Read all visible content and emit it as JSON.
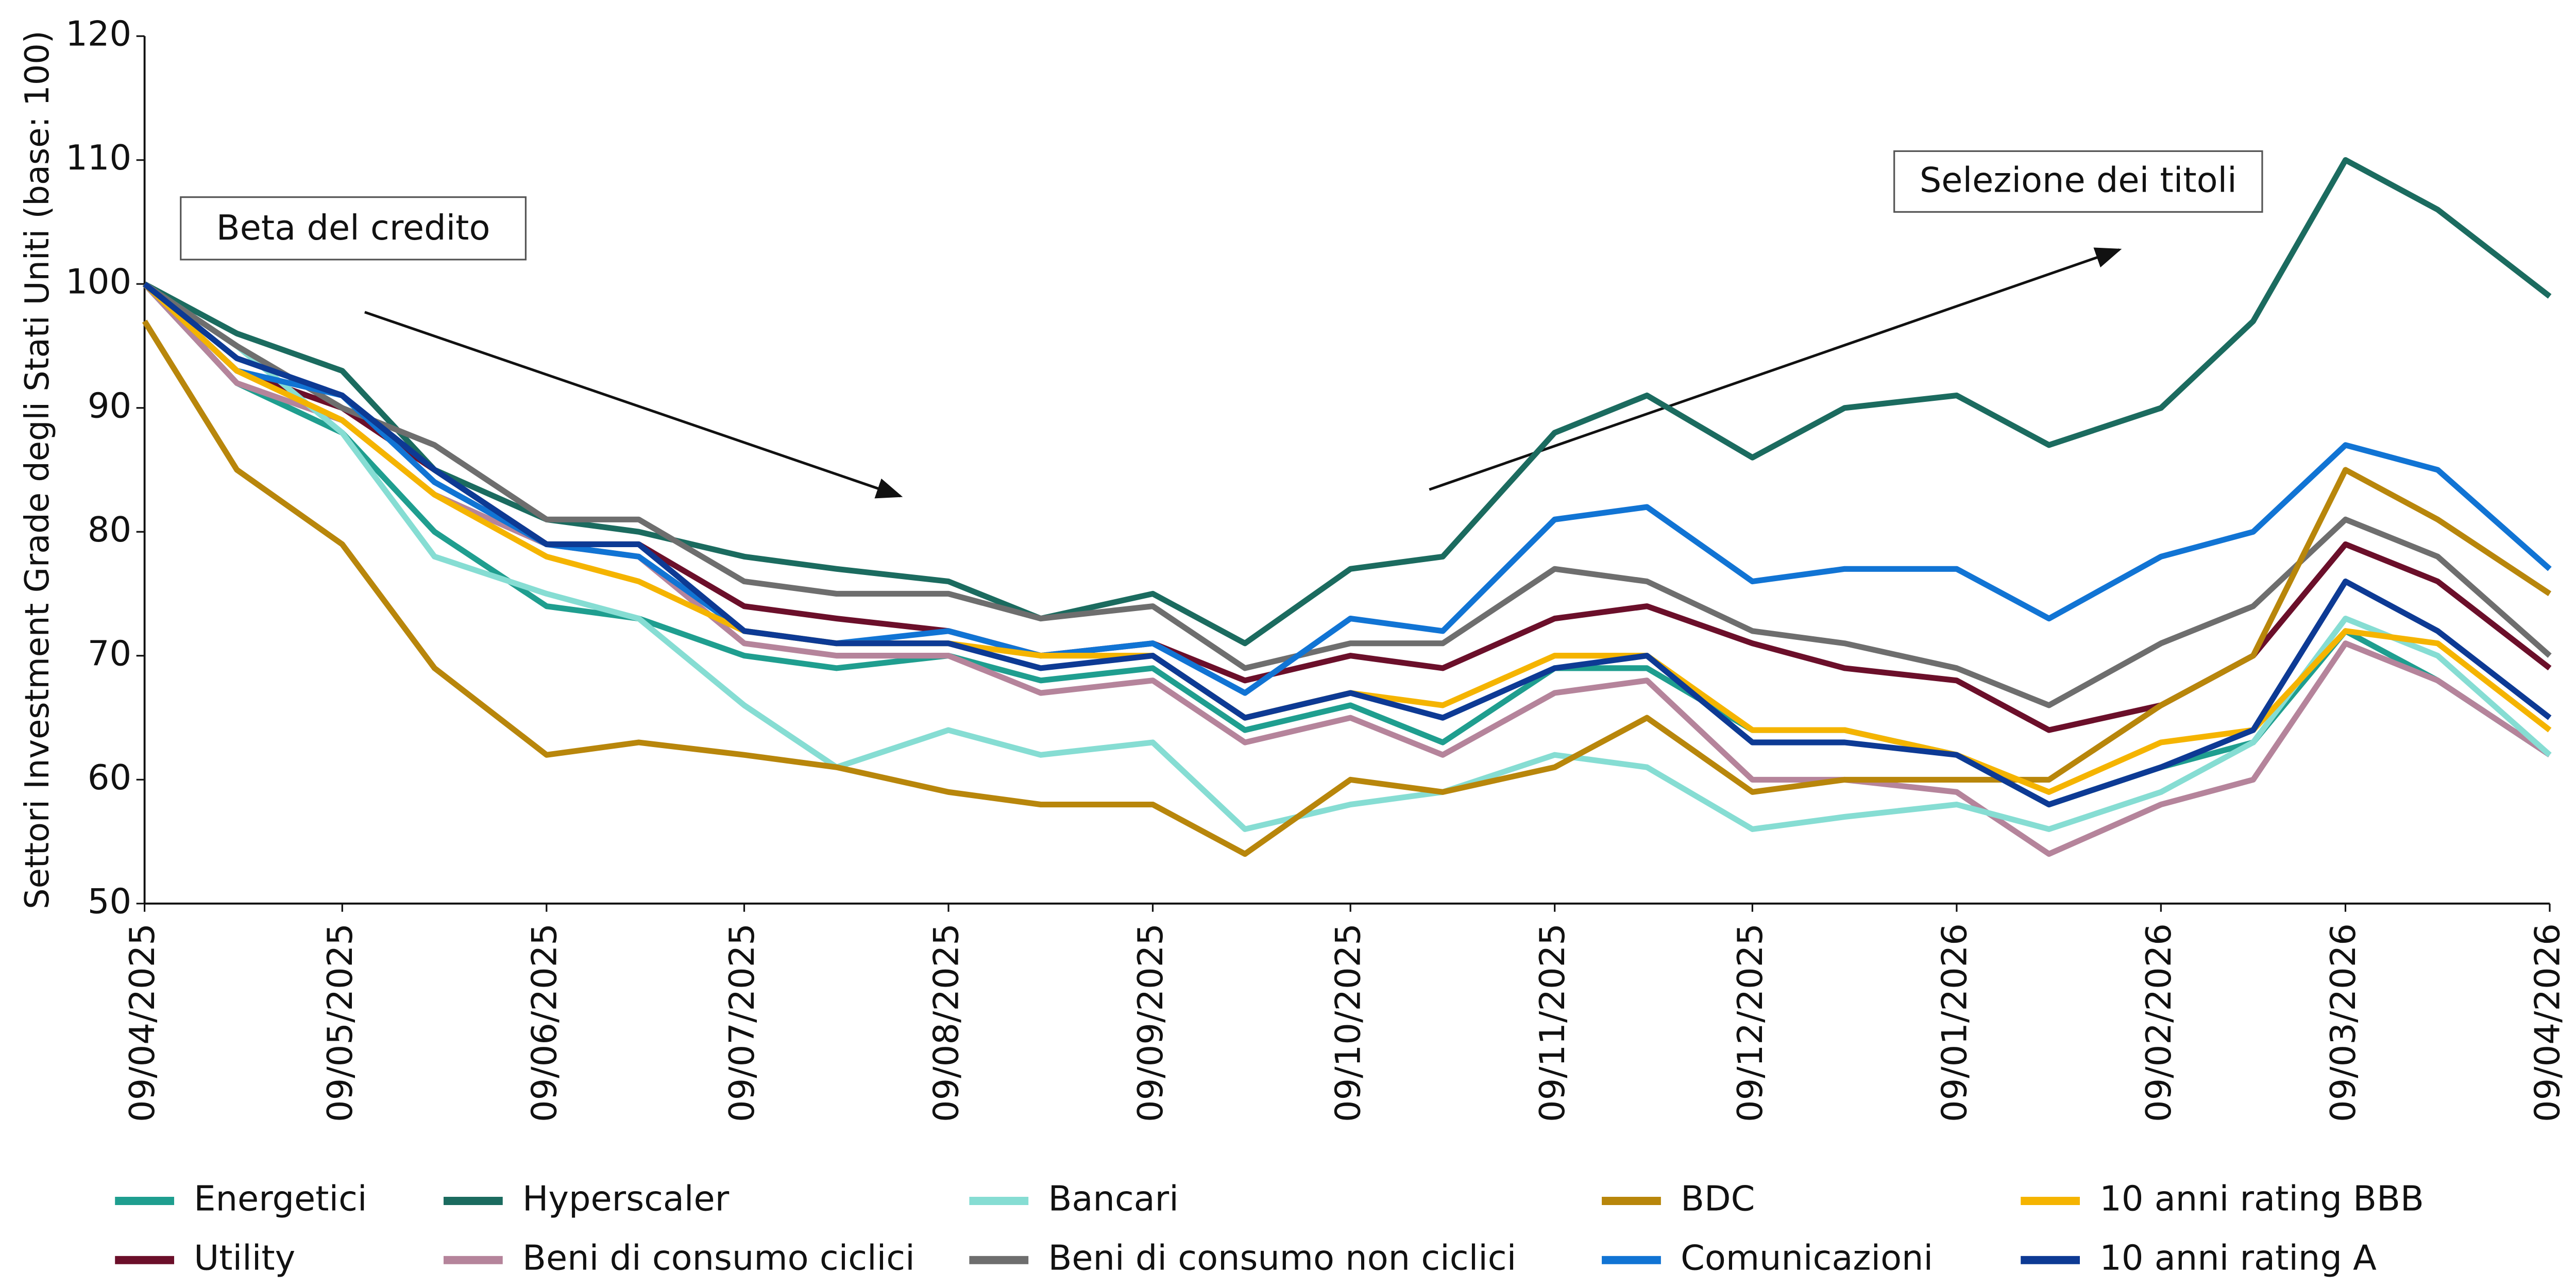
{
  "chart_data": {
    "type": "line",
    "y_label": "Settori Investment Grade degli Stati Uniti (base: 100)",
    "annotations": [
      "Beta del credito",
      "Selezione dei titoli"
    ],
    "xlim": [
      "2025-04-09",
      "2026-04-09"
    ],
    "xticks": [
      {
        "value": "2025-04-09",
        "label": "09/04/2025"
      },
      {
        "value": "2025-05-09",
        "label": "09/05/2025"
      },
      {
        "value": "2025-06-09",
        "label": "09/06/2025"
      },
      {
        "value": "2025-07-09",
        "label": "09/07/2025"
      },
      {
        "value": "2025-08-09",
        "label": "09/08/2025"
      },
      {
        "value": "2025-09-09",
        "label": "09/09/2025"
      },
      {
        "value": "2025-10-09",
        "label": "09/10/2025"
      },
      {
        "value": "2025-11-09",
        "label": "09/11/2025"
      },
      {
        "value": "2025-12-09",
        "label": "09/12/2025"
      },
      {
        "value": "2026-01-09",
        "label": "09/01/2026"
      },
      {
        "value": "2026-02-09",
        "label": "09/02/2026"
      },
      {
        "value": "2026-03-09",
        "label": "09/03/2026"
      },
      {
        "value": "2026-04-09",
        "label": "09/04/2026"
      }
    ],
    "ylim": [
      50,
      120
    ],
    "yticks": [
      50,
      60,
      70,
      80,
      90,
      100,
      110,
      120
    ],
    "x": [
      "2025-04-09",
      "2025-04-23",
      "2025-05-09",
      "2025-05-23",
      "2025-06-09",
      "2025-06-23",
      "2025-07-09",
      "2025-07-23",
      "2025-08-09",
      "2025-08-23",
      "2025-09-09",
      "2025-09-23",
      "2025-10-09",
      "2025-10-23",
      "2025-11-09",
      "2025-11-23",
      "2025-12-09",
      "2025-12-23",
      "2026-01-09",
      "2026-01-23",
      "2026-02-09",
      "2026-02-23",
      "2026-03-09",
      "2026-03-23",
      "2026-04-09"
    ],
    "series": [
      {
        "name": "Energetici",
        "color": "#1f9e8f",
        "values": [
          100,
          92,
          88,
          80,
          74,
          73,
          70,
          69,
          70,
          68,
          69,
          64,
          66,
          63,
          69,
          69,
          64,
          64,
          62,
          58,
          61,
          63,
          72,
          68,
          62
        ]
      },
      {
        "name": "Utility",
        "color": "#6b0f2a",
        "values": [
          100,
          93,
          90,
          85,
          79,
          79,
          74,
          73,
          72,
          70,
          71,
          68,
          70,
          69,
          73,
          74,
          71,
          69,
          68,
          64,
          66,
          70,
          79,
          76,
          69
        ]
      },
      {
        "name": "Hyperscaler",
        "color": "#1b6b5f",
        "values": [
          100,
          96,
          93,
          85,
          81,
          80,
          78,
          77,
          76,
          73,
          75,
          71,
          77,
          78,
          88,
          91,
          86,
          90,
          91,
          87,
          90,
          97,
          110,
          106,
          99
        ]
      },
      {
        "name": "Beni di consumo ciclici",
        "color": "#b5849b",
        "values": [
          100,
          92,
          89,
          83,
          79,
          78,
          71,
          70,
          70,
          67,
          68,
          63,
          65,
          62,
          67,
          68,
          60,
          60,
          59,
          54,
          58,
          60,
          71,
          68,
          62
        ]
      },
      {
        "name": "Bancari",
        "color": "#86ddd3",
        "values": [
          100,
          95,
          88,
          78,
          75,
          73,
          66,
          61,
          64,
          62,
          63,
          56,
          58,
          59,
          62,
          61,
          56,
          57,
          58,
          56,
          59,
          63,
          73,
          70,
          62
        ]
      },
      {
        "name": "Beni di consumo non ciclici",
        "color": "#6e6e6e",
        "values": [
          100,
          95,
          90,
          87,
          81,
          81,
          76,
          75,
          75,
          73,
          74,
          69,
          71,
          71,
          77,
          76,
          72,
          71,
          69,
          66,
          71,
          74,
          81,
          78,
          70
        ]
      },
      {
        "name": "BDC",
        "color": "#b8860b",
        "values": [
          97,
          85,
          79,
          69,
          62,
          63,
          62,
          61,
          59,
          58,
          58,
          54,
          60,
          59,
          61,
          65,
          59,
          60,
          60,
          60,
          66,
          70,
          85,
          81,
          75
        ]
      },
      {
        "name": "Comunicazioni",
        "color": "#1174d4",
        "values": [
          100,
          93,
          91,
          84,
          79,
          78,
          72,
          71,
          72,
          70,
          71,
          67,
          73,
          72,
          81,
          82,
          76,
          77,
          77,
          73,
          78,
          80,
          87,
          85,
          77
        ]
      },
      {
        "name": "10 anni rating BBB",
        "color": "#f5b400",
        "values": [
          100,
          93,
          89,
          83,
          78,
          76,
          72,
          71,
          71,
          70,
          70,
          65,
          67,
          66,
          70,
          70,
          64,
          64,
          62,
          59,
          63,
          64,
          72,
          71,
          64
        ]
      },
      {
        "name": "10 anni rating A",
        "color": "#0d3a94",
        "values": [
          100,
          94,
          91,
          85,
          79,
          79,
          72,
          71,
          71,
          69,
          70,
          65,
          67,
          65,
          69,
          70,
          63,
          63,
          62,
          58,
          61,
          64,
          76,
          72,
          65
        ]
      }
    ]
  }
}
